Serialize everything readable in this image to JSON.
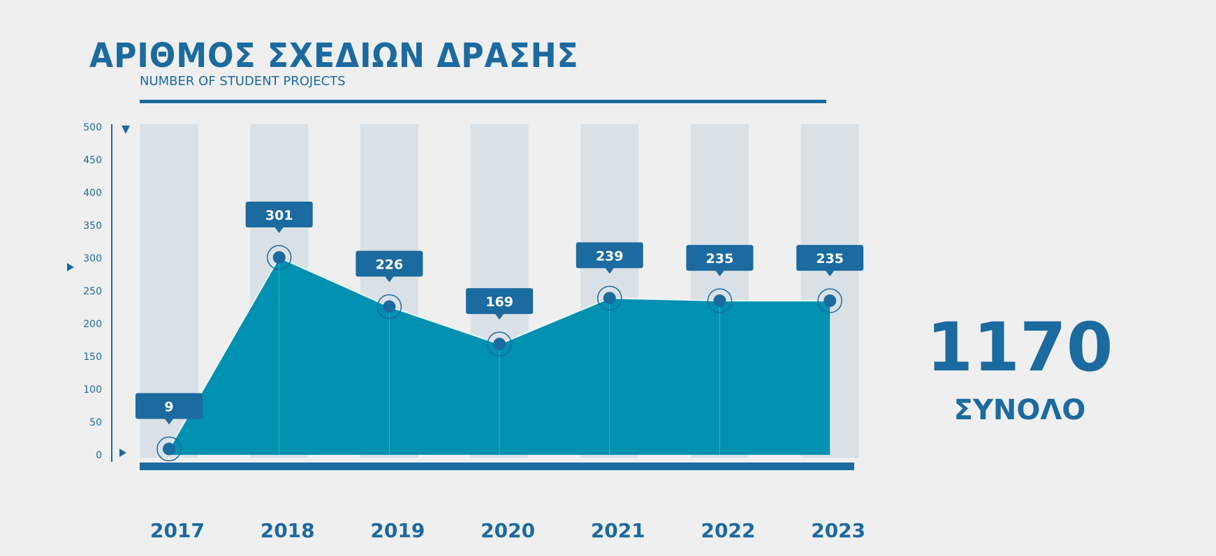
{
  "header": {
    "title": "ΑΡΙΘΜΟΣ ΣΧΕΔΙΩΝ ΔΡΑΣΗΣ",
    "subtitle": "NUMBER OF STUDENT PROJECTS"
  },
  "summary": {
    "total": "1170",
    "label": "ΣΥΝΟΛΟ"
  },
  "colors": {
    "primary": "#1b6aa0",
    "area": "#0090b0",
    "column": "#d9e1e7",
    "background": "#efefef"
  },
  "chart_data": {
    "type": "area",
    "title": "ΑΡΙΘΜΟΣ ΣΧΕΔΙΩΝ ΔΡΑΣΗΣ",
    "subtitle": "NUMBER OF STUDENT PROJECTS",
    "categories": [
      "2017",
      "2018",
      "2019",
      "2020",
      "2021",
      "2022",
      "2023"
    ],
    "values": [
      9,
      301,
      226,
      169,
      239,
      235,
      235
    ],
    "labels": [
      "9",
      "301",
      "226",
      "169",
      "239",
      "235",
      "235"
    ],
    "ylim": [
      0,
      500
    ],
    "yticks": [
      "0",
      "50",
      "100",
      "150",
      "200",
      "250",
      "300",
      "350",
      "400",
      "450",
      "500"
    ],
    "xlabel": "",
    "ylabel": ""
  }
}
